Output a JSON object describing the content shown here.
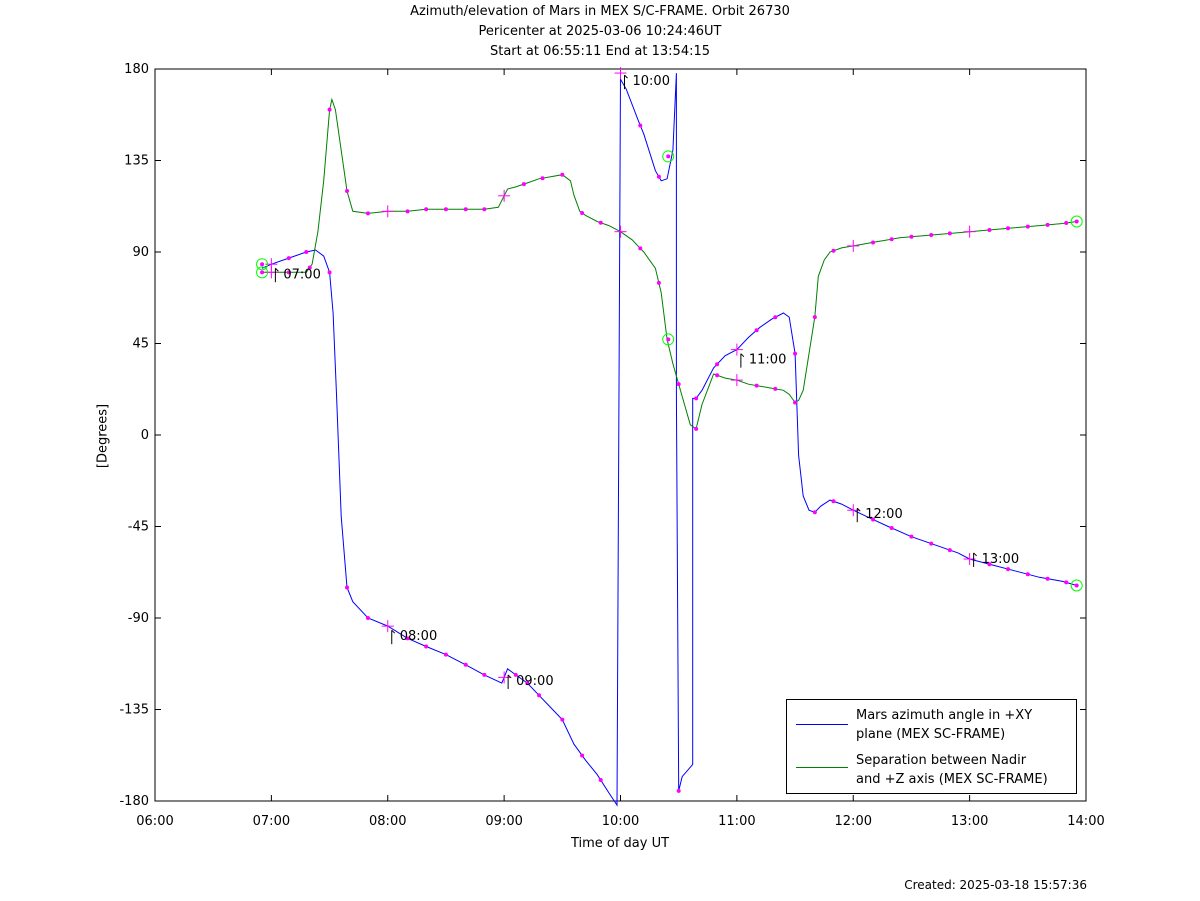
{
  "header": {
    "line1": "Azimuth/elevation of Mars in MEX S/C-FRAME.  Orbit 26730",
    "line2": "Pericenter at 2025-03-06 10:24:46UT",
    "line3": "Start at 06:55:11 End at 13:54:15"
  },
  "footer": {
    "created": "Created: 2025-03-18 15:57:36"
  },
  "colors": {
    "azimuth": "#0000ff",
    "separation": "#008000",
    "markers": "#ff00ff",
    "circles": "#00ff00"
  },
  "chart_data": {
    "type": "line",
    "title": "Azimuth/elevation of Mars in MEX S/C-FRAME.  Orbit 26730",
    "xlabel": "Time of day UT",
    "ylabel": "[Degrees]",
    "xlim": [
      6.0,
      14.0
    ],
    "ylim": [
      -180,
      180
    ],
    "xticks": [
      6,
      7,
      8,
      9,
      10,
      11,
      12,
      13,
      14
    ],
    "xtick_labels": [
      "06:00",
      "07:00",
      "08:00",
      "09:00",
      "10:00",
      "11:00",
      "12:00",
      "13:00",
      "14:00"
    ],
    "yticks": [
      180,
      135,
      90,
      45,
      0,
      -45,
      -90,
      -135,
      -180
    ],
    "ytick_labels": [
      "180",
      "135",
      "90",
      "45",
      "0",
      "-45",
      "-90",
      "-135",
      "-180"
    ],
    "legend_position": "bottom-right",
    "hour_labels": [
      {
        "t": 7.0,
        "y": 82,
        "text": "07:00"
      },
      {
        "t": 8.0,
        "y": -96,
        "text": "08:00"
      },
      {
        "t": 9.0,
        "y": -118,
        "text": "09:00"
      },
      {
        "t": 10.0,
        "y": 177,
        "text": "10:00"
      },
      {
        "t": 11.0,
        "y": 40,
        "text": "11:00"
      },
      {
        "t": 12.0,
        "y": -36,
        "text": "12:00"
      },
      {
        "t": 13.0,
        "y": -58,
        "text": "13:00"
      }
    ],
    "series": [
      {
        "name": "Mars azimuth angle in +XY plane (MEX SC-FRAME)",
        "legend_lines": [
          "Mars azimuth angle in +XY",
          "plane (MEX SC-FRAME)"
        ],
        "color": "#0000ff",
        "x": [
          6.92,
          7.0,
          7.15,
          7.3,
          7.38,
          7.45,
          7.5,
          7.53,
          7.56,
          7.6,
          7.65,
          7.7,
          7.83,
          8.0,
          8.17,
          8.33,
          8.5,
          8.67,
          8.83,
          8.98,
          9.03,
          9.1,
          9.2,
          9.3,
          9.4,
          9.5,
          9.6,
          9.7,
          9.8,
          9.9,
          9.97,
          10.0,
          10.0,
          10.05,
          10.15,
          10.2,
          10.3,
          10.35,
          10.4,
          10.45,
          10.48,
          10.48,
          10.5,
          10.53,
          10.62,
          10.62,
          10.65,
          10.7,
          10.8,
          10.9,
          11.0,
          11.1,
          11.2,
          11.3,
          11.4,
          11.45,
          11.5,
          11.53,
          11.57,
          11.62,
          11.67,
          11.72,
          11.8,
          11.9,
          12.0,
          12.15,
          12.3,
          12.5,
          12.7,
          12.9,
          13.0,
          13.2,
          13.4,
          13.6,
          13.8,
          13.92
        ],
        "y": [
          82,
          84,
          87,
          90,
          91,
          88,
          80,
          60,
          20,
          -40,
          -75,
          -82,
          -90,
          -94,
          -100,
          -104,
          -108,
          -113,
          -118,
          -122,
          -115,
          -118,
          -122,
          -128,
          -134,
          -140,
          -152,
          -160,
          -167,
          -176,
          -182,
          178,
          175,
          170,
          155,
          148,
          130,
          125,
          126,
          140,
          178,
          20,
          -175,
          -168,
          -162,
          18,
          18,
          22,
          33,
          39,
          42,
          48,
          53,
          57,
          60,
          58,
          40,
          -10,
          -30,
          -37,
          -38,
          -35,
          -32,
          -34,
          -37,
          -41,
          -45,
          -50,
          -54,
          -58,
          -61,
          -64,
          -67,
          -70,
          -72,
          -74
        ]
      },
      {
        "name": "Separation between Nadir and +Z axis (MEX SC-FRAME)",
        "legend_lines": [
          "Separation between Nadir",
          "and +Z axis (MEX SC-FRAME)"
        ],
        "color": "#008000",
        "x": [
          6.92,
          7.0,
          7.15,
          7.3,
          7.35,
          7.4,
          7.45,
          7.5,
          7.52,
          7.55,
          7.6,
          7.65,
          7.7,
          7.83,
          8.0,
          8.17,
          8.33,
          8.5,
          8.67,
          8.83,
          8.95,
          9.03,
          9.1,
          9.2,
          9.3,
          9.4,
          9.5,
          9.57,
          9.6,
          9.65,
          9.7,
          9.8,
          9.9,
          10.0,
          10.1,
          10.2,
          10.3,
          10.35,
          10.4,
          10.45,
          10.5,
          10.55,
          10.6,
          10.65,
          10.7,
          10.8,
          10.9,
          11.0,
          11.1,
          11.2,
          11.3,
          11.4,
          11.45,
          11.5,
          11.53,
          11.57,
          11.62,
          11.67,
          11.7,
          11.75,
          11.8,
          11.9,
          12.0,
          12.2,
          12.4,
          12.6,
          12.8,
          13.0,
          13.2,
          13.4,
          13.6,
          13.8,
          13.92
        ],
        "y": [
          80,
          80,
          80,
          80,
          84,
          100,
          125,
          160,
          165,
          160,
          140,
          120,
          110,
          109,
          110,
          110,
          111,
          111,
          111,
          111,
          112,
          121,
          122,
          124,
          126,
          127,
          128,
          125,
          118,
          110,
          108,
          105,
          103,
          100,
          96,
          90,
          82,
          70,
          47,
          35,
          25,
          15,
          5,
          3,
          15,
          30,
          28,
          27,
          25,
          24,
          23,
          22,
          20,
          16,
          17,
          22,
          40,
          58,
          78,
          86,
          90,
          92,
          93,
          95,
          97,
          98,
          99,
          100,
          101,
          102,
          103,
          104,
          105
        ]
      }
    ],
    "markers": {
      "azimuth_t": [
        7.0,
        7.15,
        7.3,
        7.5,
        7.65,
        7.83,
        8.0,
        8.17,
        8.33,
        8.5,
        8.67,
        8.83,
        9.0,
        9.1,
        9.2,
        9.3,
        9.5,
        9.67,
        9.83,
        10.0,
        10.17,
        10.33,
        10.5,
        10.65,
        10.83,
        11.0,
        11.17,
        11.33,
        11.5,
        11.67,
        11.83,
        12.0,
        12.17,
        12.33,
        12.5,
        12.67,
        12.83,
        13.0,
        13.17,
        13.33,
        13.5,
        13.67,
        13.83
      ],
      "separation_t": [
        7.0,
        7.15,
        7.33,
        7.5,
        7.65,
        7.83,
        8.0,
        8.17,
        8.33,
        8.5,
        8.67,
        8.83,
        9.0,
        9.17,
        9.33,
        9.5,
        9.67,
        9.83,
        10.0,
        10.17,
        10.33,
        10.5,
        10.65,
        10.83,
        11.0,
        11.17,
        11.33,
        11.5,
        11.67,
        11.83,
        12.0,
        12.17,
        12.33,
        12.5,
        12.67,
        12.83,
        13.0,
        13.17,
        13.33,
        13.5,
        13.67,
        13.83
      ],
      "circles": [
        {
          "t": 6.92,
          "y": 84
        },
        {
          "t": 6.92,
          "y": 80
        },
        {
          "t": 10.41,
          "y": 137
        },
        {
          "t": 10.41,
          "y": 47
        },
        {
          "t": 13.92,
          "y": 105
        },
        {
          "t": 13.92,
          "y": -74
        }
      ]
    }
  }
}
